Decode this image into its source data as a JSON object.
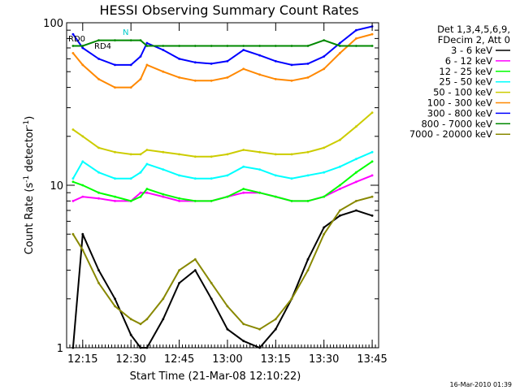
{
  "chart_data": {
    "type": "line",
    "title": "HESSI Observing Summary Count Rates",
    "xlabel": "Start Time (21-Mar-08 12:10:22)",
    "ylabel_main": "Count Rate (s",
    "ylabel_sup": "-1",
    "ylabel_tail": " detector",
    "ylabel_close": ")",
    "yscale": "log",
    "ylim": [
      1,
      100
    ],
    "xlim_minutes": [
      12.1667,
      13.7833
    ],
    "ytick_labels": [
      "1",
      "10",
      "100"
    ],
    "xtick_labels": [
      "12:15",
      "12:30",
      "12:45",
      "13:00",
      "13:15",
      "13:30",
      "13:45"
    ],
    "grid": false,
    "legend_position": "right",
    "legend_header": [
      "Det 1,3,4,5,6,9,",
      "FDecim 2, Att 0"
    ],
    "footer_stamp": "16-Mar-2010 01:39",
    "annotations": {
      "rd0": "RD0",
      "rd4": "RD4",
      "n": "N"
    },
    "x": [
      12.2,
      12.25,
      12.333,
      12.417,
      12.5,
      12.55,
      12.583,
      12.667,
      12.75,
      12.833,
      12.917,
      13.0,
      13.083,
      13.167,
      13.25,
      13.333,
      13.417,
      13.5,
      13.583,
      13.667,
      13.75
    ],
    "series": [
      {
        "name": "3 - 6 keV",
        "color": "#000000",
        "values": [
          1.0,
          5.0,
          3.0,
          2.0,
          1.2,
          1.0,
          1.0,
          1.5,
          2.5,
          3.0,
          2.0,
          1.3,
          1.1,
          1.0,
          1.3,
          2.0,
          3.5,
          5.5,
          6.5,
          7.0,
          6.5
        ]
      },
      {
        "name": "6 - 12 keV",
        "color": "#ff00ff",
        "values": [
          8.0,
          8.5,
          8.3,
          8.0,
          8.0,
          9.0,
          9.0,
          8.5,
          8.0,
          8.0,
          8.0,
          8.5,
          9.0,
          9.0,
          8.5,
          8.0,
          8.0,
          8.5,
          9.5,
          10.5,
          11.5
        ]
      },
      {
        "name": "12 - 25 keV",
        "color": "#00ff00",
        "values": [
          10.5,
          10.0,
          9.0,
          8.5,
          8.0,
          8.5,
          9.5,
          8.8,
          8.3,
          8.0,
          8.0,
          8.5,
          9.5,
          9.0,
          8.5,
          8.0,
          8.0,
          8.5,
          10.0,
          12.0,
          14.0
        ]
      },
      {
        "name": "25 - 50 keV",
        "color": "#00ffff",
        "values": [
          11.0,
          14.0,
          12.0,
          11.0,
          11.0,
          12.0,
          13.5,
          12.5,
          11.5,
          11.0,
          11.0,
          11.5,
          13.0,
          12.5,
          11.5,
          11.0,
          11.5,
          12.0,
          13.0,
          14.5,
          16.0
        ]
      },
      {
        "name": "50 - 100 keV",
        "color": "#cccc00",
        "values": [
          22.0,
          20.0,
          17.0,
          16.0,
          15.5,
          15.5,
          16.5,
          16.0,
          15.5,
          15.0,
          15.0,
          15.5,
          16.5,
          16.0,
          15.5,
          15.5,
          16.0,
          17.0,
          19.0,
          23.0,
          28.0
        ]
      },
      {
        "name": "100 - 300 keV",
        "color": "#ff8800",
        "values": [
          65.0,
          55.0,
          45.0,
          40.0,
          40.0,
          45.0,
          55.0,
          50.0,
          46.0,
          44.0,
          44.0,
          46.0,
          52.0,
          48.0,
          45.0,
          44.0,
          46.0,
          52.0,
          65.0,
          80.0,
          85.0
        ]
      },
      {
        "name": "300 - 800 keV",
        "color": "#0000ff",
        "values": [
          85.0,
          70.0,
          60.0,
          55.0,
          55.0,
          62.0,
          75.0,
          68.0,
          60.0,
          57.0,
          56.0,
          58.0,
          68.0,
          63.0,
          58.0,
          55.0,
          56.0,
          62.0,
          75.0,
          90.0,
          95.0
        ]
      },
      {
        "name": "800 - 7000 keV",
        "color": "#008800",
        "values": [
          72.0,
          72.0,
          78.0,
          78.0,
          78.0,
          78.0,
          72.0,
          72.0,
          72.0,
          72.0,
          72.0,
          72.0,
          72.0,
          72.0,
          72.0,
          72.0,
          72.0,
          78.0,
          72.0,
          72.0,
          72.0
        ]
      },
      {
        "name": "7000 - 20000 keV",
        "color": "#888800",
        "values": [
          5.0,
          4.0,
          2.5,
          1.8,
          1.5,
          1.4,
          1.5,
          2.0,
          3.0,
          3.5,
          2.5,
          1.8,
          1.4,
          1.3,
          1.5,
          2.0,
          3.0,
          5.0,
          7.0,
          8.0,
          8.5
        ]
      }
    ]
  }
}
